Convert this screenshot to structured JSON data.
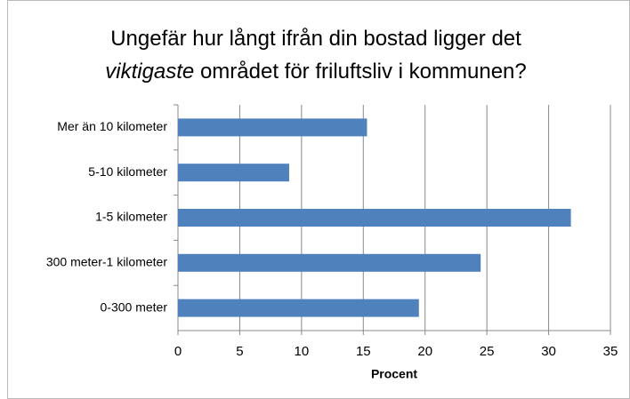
{
  "chart_data": {
    "type": "bar",
    "orientation": "horizontal",
    "title": [
      "Ungefär hur långt ifrån din bostad ligger det",
      "viktigaste",
      "området för friluftsliv i kommunen?"
    ],
    "categories": [
      "Mer än 10 kilometer",
      "5-10 kilometer",
      "1-5 kilometer",
      "300 meter-1 kilometer",
      "0-300 meter"
    ],
    "values": [
      15.3,
      9.0,
      31.8,
      24.5,
      19.5
    ],
    "color": "#4f81bd",
    "xlabel": "Procent",
    "xlim": [
      0,
      35
    ],
    "xticks": [
      0,
      5,
      10,
      15,
      20,
      25,
      30,
      35
    ],
    "grid": true
  }
}
